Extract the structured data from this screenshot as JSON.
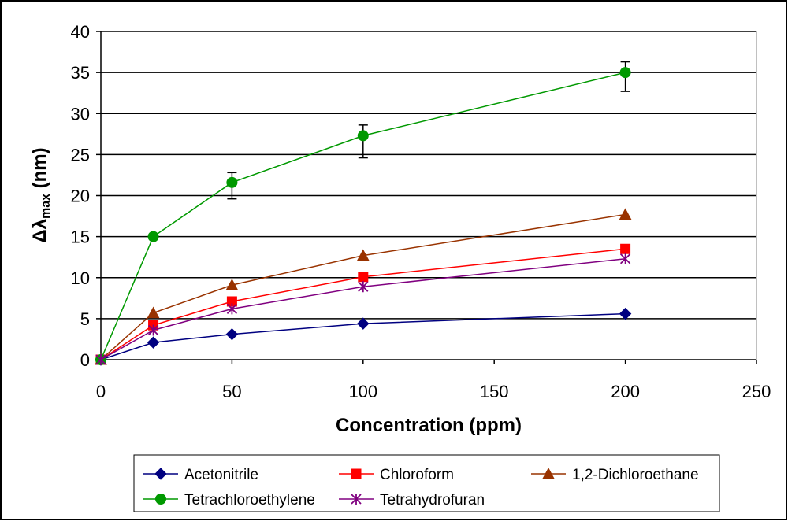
{
  "chart_data": {
    "type": "line",
    "title": "",
    "xlabel": "Concentration (ppm)",
    "ylabel_main": "Δλ",
    "ylabel_sub": "max",
    "ylabel_unit": " (nm)",
    "xlim": [
      0,
      250
    ],
    "ylim": [
      0,
      40
    ],
    "xticks": [
      0,
      50,
      100,
      150,
      200,
      250
    ],
    "yticks": [
      0,
      5,
      10,
      15,
      20,
      25,
      30,
      35,
      40
    ],
    "grid": "horizontal",
    "legend_position": "bottom",
    "x": [
      0,
      20,
      50,
      100,
      200
    ],
    "series": [
      {
        "name": "Acetonitrile",
        "color": "#000080",
        "marker": "diamond",
        "values": [
          0,
          2.1,
          3.1,
          4.4,
          5.6
        ]
      },
      {
        "name": "Chloroform",
        "color": "#ff0000",
        "marker": "square",
        "values": [
          0,
          4.2,
          7.1,
          10.1,
          13.5
        ]
      },
      {
        "name": "1,2-Dichloroethane",
        "color": "#993300",
        "marker": "triangle",
        "values": [
          0,
          5.7,
          9.1,
          12.7,
          17.7
        ]
      },
      {
        "name": "Tetrachloroethylene",
        "color": "#009900",
        "marker": "circle",
        "values": [
          0,
          15.0,
          21.6,
          27.3,
          35.0
        ],
        "error_low": [
          0,
          0,
          2.0,
          2.7,
          2.3
        ],
        "error_high": [
          0,
          0,
          1.2,
          1.3,
          1.3
        ]
      },
      {
        "name": "Tetrahydrofuran",
        "color": "#800080",
        "marker": "star",
        "values": [
          0,
          3.6,
          6.2,
          8.9,
          12.3
        ]
      }
    ]
  }
}
